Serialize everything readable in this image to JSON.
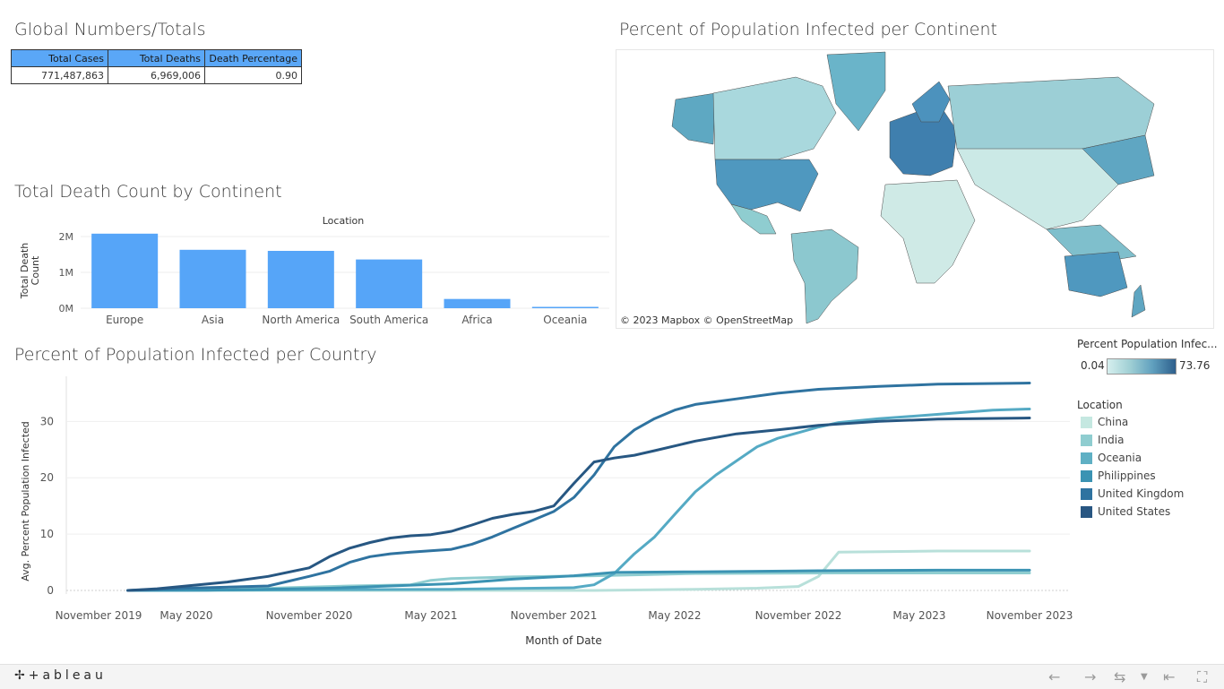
{
  "global": {
    "title": "Global Numbers/Totals",
    "headers": [
      "Total Cases",
      "Total Deaths",
      "Death Percentage"
    ],
    "values": [
      "771,487,863",
      "6,969,006",
      "0.90"
    ]
  },
  "map": {
    "title": "Percent of Population Infected per Continent",
    "credit": "© 2023 Mapbox  © OpenStreetMap"
  },
  "legend": {
    "gradient_title": "Percent Population Infec...",
    "min": "0.04",
    "max": "73.76",
    "location_title": "Location",
    "locations": [
      {
        "name": "China",
        "color": "#c5e8e1"
      },
      {
        "name": "India",
        "color": "#8fcdd0"
      },
      {
        "name": "Oceania",
        "color": "#5fb0c4"
      },
      {
        "name": "Philippines",
        "color": "#3b93b3"
      },
      {
        "name": "United Kingdom",
        "color": "#2f73a0"
      },
      {
        "name": "United States",
        "color": "#285682"
      }
    ]
  },
  "chart_data": [
    {
      "type": "bar",
      "title": "Total Death Count by Continent",
      "header": "Location",
      "ylabel": "Total Death Count",
      "ylim": [
        0,
        2100000
      ],
      "yticks": [
        {
          "v": 0,
          "label": "0M"
        },
        {
          "v": 1000000,
          "label": "1M"
        },
        {
          "v": 2000000,
          "label": "2M"
        }
      ],
      "categories": [
        "Europe",
        "Asia",
        "North America",
        "South America",
        "Africa",
        "Oceania"
      ],
      "values": [
        2080000,
        1630000,
        1600000,
        1360000,
        258000,
        30000
      ],
      "color": "#56a5f8"
    },
    {
      "type": "line",
      "title": "Percent of Population Infected per Country",
      "xlabel": "Month of Date",
      "ylabel": "Avg. Percent Population Infected",
      "ylim": [
        0,
        38
      ],
      "yticks": [
        0,
        10,
        20,
        30
      ],
      "xlim": [
        "2019-11",
        "2023-11"
      ],
      "xticks": [
        "November 2019",
        "May 2020",
        "November 2020",
        "May 2021",
        "November 2021",
        "May 2022",
        "November 2022",
        "May 2023",
        "November 2023"
      ],
      "series": [
        {
          "name": "China",
          "color": "#b8e0da",
          "x": [
            "2020-01",
            "2020-06",
            "2021-01",
            "2021-06",
            "2022-01",
            "2022-06",
            "2022-09",
            "2022-11",
            "2022-12",
            "2023-01",
            "2023-06",
            "2023-11"
          ],
          "y": [
            0,
            0,
            0,
            0,
            0,
            0.2,
            0.4,
            0.7,
            2.5,
            6.8,
            7.0,
            7.0
          ]
        },
        {
          "name": "India",
          "color": "#8fcdd0",
          "x": [
            "2020-01",
            "2020-04",
            "2020-07",
            "2020-10",
            "2021-01",
            "2021-04",
            "2021-05",
            "2021-06",
            "2021-09",
            "2022-01",
            "2022-06",
            "2023-01",
            "2023-11"
          ],
          "y": [
            0,
            0.01,
            0.1,
            0.5,
            0.8,
            1.0,
            1.8,
            2.1,
            2.4,
            2.6,
            3.0,
            3.1,
            3.1
          ]
        },
        {
          "name": "Oceania",
          "color": "#55aac4",
          "x": [
            "2020-01",
            "2020-10",
            "2021-06",
            "2021-12",
            "2022-01",
            "2022-02",
            "2022-03",
            "2022-04",
            "2022-05",
            "2022-06",
            "2022-07",
            "2022-09",
            "2022-10",
            "2022-11",
            "2022-12",
            "2023-01",
            "2023-03",
            "2023-05",
            "2023-07",
            "2023-09",
            "2023-11"
          ],
          "y": [
            0,
            0.1,
            0.2,
            0.5,
            1.0,
            3.0,
            6.5,
            9.5,
            13.5,
            17.5,
            20.5,
            25.5,
            27.0,
            28.0,
            29.0,
            29.8,
            30.5,
            31.0,
            31.5,
            32.0,
            32.2
          ]
        },
        {
          "name": "Philippines",
          "color": "#3b93b3",
          "x": [
            "2020-01",
            "2020-06",
            "2020-12",
            "2021-06",
            "2021-09",
            "2021-12",
            "2022-02",
            "2022-06",
            "2022-12",
            "2023-06",
            "2023-11"
          ],
          "y": [
            0,
            0.05,
            0.4,
            1.2,
            2.0,
            2.6,
            3.2,
            3.3,
            3.5,
            3.6,
            3.6
          ]
        },
        {
          "name": "United Kingdom",
          "color": "#2f73a0",
          "x": [
            "2020-01",
            "2020-05",
            "2020-09",
            "2020-11",
            "2020-12",
            "2021-01",
            "2021-02",
            "2021-03",
            "2021-04",
            "2021-06",
            "2021-07",
            "2021-08",
            "2021-09",
            "2021-10",
            "2021-11",
            "2021-12",
            "2022-01",
            "2022-02",
            "2022-03",
            "2022-04",
            "2022-05",
            "2022-06",
            "2022-08",
            "2022-10",
            "2022-12",
            "2023-03",
            "2023-06",
            "2023-11"
          ],
          "y": [
            0,
            0.4,
            0.8,
            2.5,
            3.4,
            5.0,
            6.0,
            6.5,
            6.8,
            7.3,
            8.2,
            9.5,
            11.0,
            12.5,
            14.0,
            16.5,
            20.5,
            25.5,
            28.5,
            30.5,
            32.0,
            33.0,
            34.0,
            35.0,
            35.7,
            36.2,
            36.6,
            36.8
          ]
        },
        {
          "name": "United States",
          "color": "#275782",
          "x": [
            "2020-01",
            "2020-03",
            "2020-05",
            "2020-07",
            "2020-09",
            "2020-11",
            "2020-12",
            "2021-01",
            "2021-02",
            "2021-03",
            "2021-04",
            "2021-05",
            "2021-06",
            "2021-07",
            "2021-08",
            "2021-09",
            "2021-10",
            "2021-11",
            "2021-12",
            "2022-01",
            "2022-02",
            "2022-03",
            "2022-04",
            "2022-06",
            "2022-08",
            "2022-10",
            "2022-12",
            "2023-03",
            "2023-06",
            "2023-11"
          ],
          "y": [
            0,
            0.3,
            0.8,
            1.5,
            2.5,
            4.0,
            6.0,
            7.5,
            8.5,
            9.3,
            9.7,
            9.9,
            10.5,
            11.6,
            12.8,
            13.5,
            14.0,
            15.0,
            19.0,
            22.8,
            23.5,
            24.0,
            24.8,
            26.5,
            27.8,
            28.5,
            29.3,
            30.0,
            30.4,
            30.6
          ]
        }
      ]
    }
  ]
}
